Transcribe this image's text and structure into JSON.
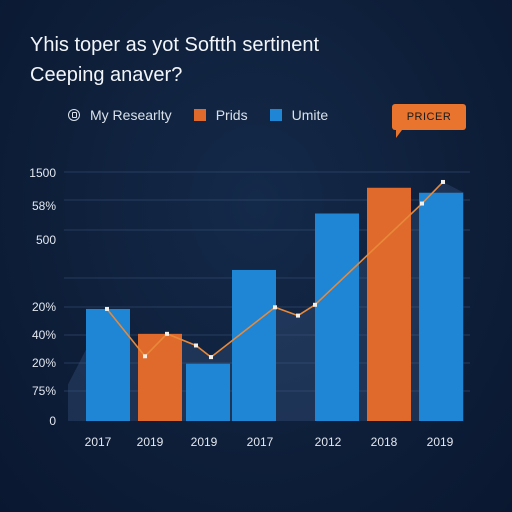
{
  "title": "Yhis toper as yot Softth sertinent",
  "subtitle": "Ceeping anaver?",
  "legend": [
    {
      "label": "My Researlty",
      "icon": "clock-icon"
    },
    {
      "label": "Prids",
      "color": "#e06a2c"
    },
    {
      "label": "Umite",
      "color": "#1e86d4"
    }
  ],
  "badge": "PRICER",
  "colors": {
    "orange": "#e06a2c",
    "blue": "#1e86d4",
    "dark_blue": "#1d3d66",
    "line": "#e8893a"
  },
  "chart_data": {
    "type": "bar",
    "ytick_labels": [
      "0",
      "75%",
      "20%",
      "40%",
      "20%",
      "500",
      "58%",
      "1500"
    ],
    "ylim": [
      0,
      1500
    ],
    "bar_labels": [
      "2017",
      "2019",
      "2019",
      "2017",
      "2012",
      "2018",
      "2019"
    ],
    "bars": [
      {
        "x": "2017",
        "value": 675,
        "color": "blue"
      },
      {
        "x": "2019",
        "value": 525,
        "color": "orange"
      },
      {
        "x": "2019",
        "value": 345,
        "color": "blue"
      },
      {
        "x": "2017",
        "value": 910,
        "color": "blue"
      },
      {
        "x": "2012",
        "value": 1250,
        "color": "blue"
      },
      {
        "x": "2018",
        "value": 1405,
        "color": "orange"
      },
      {
        "x": "2019",
        "value": 1375,
        "color": "blue"
      }
    ],
    "line": {
      "points": [
        {
          "x": "2017",
          "value": 675
        },
        {
          "x": "2019",
          "value": 390
        },
        {
          "x": "2019",
          "value": 525
        },
        {
          "x": "2019",
          "value": 455
        },
        {
          "x": "2019",
          "value": 385
        },
        {
          "x": "2017",
          "value": 685
        },
        {
          "x": "2012",
          "value": 635
        },
        {
          "x": "2012",
          "value": 700
        },
        {
          "x": "2018",
          "value": 1310
        },
        {
          "x": "2019",
          "value": 1440
        }
      ]
    },
    "grid": true
  }
}
